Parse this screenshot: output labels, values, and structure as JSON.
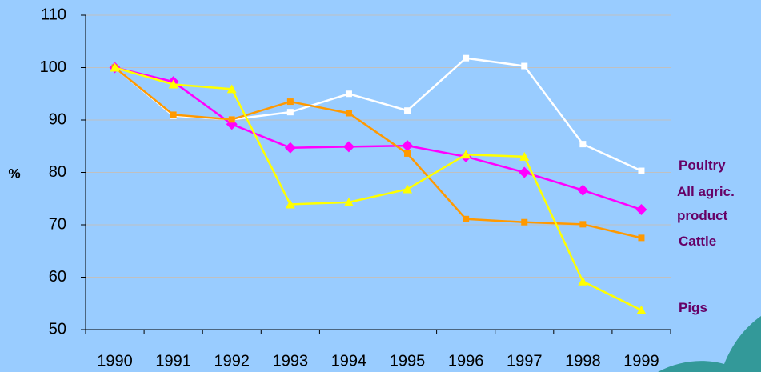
{
  "chart_data": {
    "type": "line",
    "y_label": "%",
    "categories": [
      "1990",
      "1991",
      "1992",
      "1993",
      "1994",
      "1995",
      "1996",
      "1997",
      "1998",
      "1999"
    ],
    "series": [
      {
        "name": "Poultry",
        "color": "#ffffff",
        "marker": "square",
        "values": [
          100,
          90.8,
          90.1,
          91.5,
          95,
          91.8,
          101.8,
          100.3,
          85.4,
          80.3
        ]
      },
      {
        "name": "All agric. product",
        "color": "#ff00ff",
        "marker": "diamond",
        "values": [
          100,
          97.3,
          89.2,
          84.7,
          84.9,
          85.1,
          83,
          80,
          76.6,
          72.9
        ]
      },
      {
        "name": "Cattle",
        "color": "#ff9900",
        "marker": "square",
        "values": [
          100,
          91,
          90.1,
          93.5,
          91.3,
          83.6,
          71.1,
          70.5,
          70.1,
          67.5
        ]
      },
      {
        "name": "Pigs",
        "color": "#ffff00",
        "marker": "triangle",
        "values": [
          100,
          96.8,
          95.9,
          73.9,
          74.3,
          76.8,
          83.4,
          83,
          59.2,
          53.7
        ]
      }
    ],
    "ylim": [
      50,
      110
    ],
    "yticks": [
      50,
      60,
      70,
      80,
      90,
      100,
      110
    ],
    "grid": true
  }
}
